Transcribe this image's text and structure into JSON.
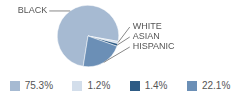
{
  "chart_data": {
    "type": "pie",
    "categories": [
      "BLACK",
      "WHITE",
      "ASIAN",
      "HISPANIC"
    ],
    "values": [
      75.3,
      1.2,
      1.4,
      22.1
    ],
    "value_labels": [
      "75.3%",
      "1.2%",
      "1.4%",
      "22.1%"
    ],
    "colors": [
      "#a6bad2",
      "#d3deeb",
      "#2e5b85",
      "#6b8fb6"
    ],
    "legend": "bottom"
  }
}
